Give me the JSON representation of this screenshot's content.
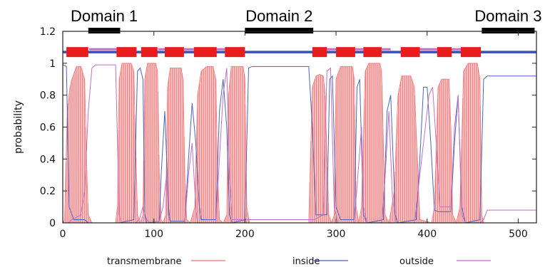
{
  "chart_data": {
    "type": "line",
    "xlabel": "",
    "ylabel": "probability",
    "xlim": [
      0,
      520
    ],
    "ylim": [
      0,
      1.2
    ],
    "x_ticks": [
      0,
      100,
      200,
      300,
      400,
      500
    ],
    "y_ticks": [
      0,
      0.2,
      0.4,
      0.6,
      0.8,
      1,
      1.2
    ],
    "y_tick_labels": [
      "0",
      "0.2",
      "0.4",
      "0.6",
      "0.8",
      "1",
      "1.2"
    ],
    "grid": false,
    "legend_position": "bottom",
    "series": [
      {
        "name": "transmembrane",
        "color": "#f07070",
        "style": "dense-vertical-fill",
        "points": [
          [
            0,
            0
          ],
          [
            2,
            0.02
          ],
          [
            5,
            0.7
          ],
          [
            8,
            0.85
          ],
          [
            10,
            0.9
          ],
          [
            15,
            0.98
          ],
          [
            20,
            0.98
          ],
          [
            24,
            0.9
          ],
          [
            26,
            0.4
          ],
          [
            28,
            0.05
          ],
          [
            32,
            0
          ],
          [
            58,
            0
          ],
          [
            60,
            0.1
          ],
          [
            62,
            0.9
          ],
          [
            65,
            1
          ],
          [
            75,
            1
          ],
          [
            78,
            0.95
          ],
          [
            80,
            0.5
          ],
          [
            82,
            0.05
          ],
          [
            85,
            0
          ],
          [
            88,
            0.05
          ],
          [
            90,
            0.9
          ],
          [
            93,
            1
          ],
          [
            102,
            1
          ],
          [
            104,
            0.95
          ],
          [
            106,
            0.3
          ],
          [
            108,
            0.02
          ],
          [
            110,
            0
          ],
          [
            113,
            0.05
          ],
          [
            115,
            0.85
          ],
          [
            118,
            0.97
          ],
          [
            130,
            0.97
          ],
          [
            132,
            0.9
          ],
          [
            134,
            0.3
          ],
          [
            136,
            0.02
          ],
          [
            140,
            0
          ],
          [
            145,
            0.1
          ],
          [
            148,
            0.8
          ],
          [
            152,
            0.95
          ],
          [
            158,
            0.98
          ],
          [
            165,
            0.98
          ],
          [
            168,
            0.9
          ],
          [
            170,
            0.3
          ],
          [
            172,
            0.02
          ],
          [
            176,
            0
          ],
          [
            180,
            0.05
          ],
          [
            182,
            0.8
          ],
          [
            185,
            0.98
          ],
          [
            198,
            0.98
          ],
          [
            200,
            0.9
          ],
          [
            202,
            0.1
          ],
          [
            205,
            0
          ],
          [
            270,
            0
          ],
          [
            274,
            0.85
          ],
          [
            278,
            0.92
          ],
          [
            282,
            0.93
          ],
          [
            286,
            0.92
          ],
          [
            288,
            0.8
          ],
          [
            292,
            0.05
          ],
          [
            295,
            0
          ],
          [
            298,
            0.05
          ],
          [
            300,
            0.9
          ],
          [
            305,
            0.98
          ],
          [
            318,
            0.98
          ],
          [
            320,
            0.9
          ],
          [
            322,
            0.1
          ],
          [
            325,
            0
          ],
          [
            328,
            0.1
          ],
          [
            332,
            0.95
          ],
          [
            336,
            1
          ],
          [
            348,
            1
          ],
          [
            350,
            0.95
          ],
          [
            352,
            0.5
          ],
          [
            354,
            0.05
          ],
          [
            358,
            0
          ],
          [
            364,
            0.2
          ],
          [
            368,
            0.8
          ],
          [
            372,
            0.92
          ],
          [
            382,
            0.92
          ],
          [
            386,
            0.85
          ],
          [
            390,
            0.3
          ],
          [
            392,
            0.02
          ],
          [
            405,
            0
          ],
          [
            408,
            0.1
          ],
          [
            412,
            0.85
          ],
          [
            416,
            0.9
          ],
          [
            424,
            0.9
          ],
          [
            426,
            0.6
          ],
          [
            428,
            0.05
          ],
          [
            432,
            0
          ],
          [
            436,
            0.1
          ],
          [
            440,
            0.95
          ],
          [
            445,
            1
          ],
          [
            455,
            1
          ],
          [
            458,
            0.9
          ],
          [
            460,
            0.05
          ],
          [
            462,
            0
          ],
          [
            520,
            0
          ]
        ]
      },
      {
        "name": "inside",
        "color": "#4a64c0",
        "points": [
          [
            0,
            0.99
          ],
          [
            4,
            0.98
          ],
          [
            7,
            0.1
          ],
          [
            12,
            0.02
          ],
          [
            24,
            0.02
          ],
          [
            28,
            0
          ],
          [
            58,
            0
          ],
          [
            62,
            0
          ],
          [
            78,
            0.02
          ],
          [
            82,
            0.95
          ],
          [
            85,
            0.97
          ],
          [
            88,
            0.9
          ],
          [
            90,
            0.05
          ],
          [
            92,
            0
          ],
          [
            106,
            0.01
          ],
          [
            108,
            0.3
          ],
          [
            112,
            0.7
          ],
          [
            116,
            0.1
          ],
          [
            118,
            0.01
          ],
          [
            134,
            0.01
          ],
          [
            138,
            0.4
          ],
          [
            142,
            0.75
          ],
          [
            146,
            0.5
          ],
          [
            150,
            0.1
          ],
          [
            152,
            0.02
          ],
          [
            168,
            0.02
          ],
          [
            172,
            0.7
          ],
          [
            176,
            0.9
          ],
          [
            180,
            0.6
          ],
          [
            183,
            0.05
          ],
          [
            186,
            0
          ],
          [
            200,
            0.02
          ],
          [
            204,
            0.97
          ],
          [
            208,
            0.98
          ],
          [
            270,
            0.98
          ],
          [
            274,
            0.6
          ],
          [
            278,
            0.05
          ],
          [
            290,
            0.05
          ],
          [
            293,
            0.9
          ],
          [
            296,
            0.92
          ],
          [
            300,
            0.1
          ],
          [
            305,
            0.02
          ],
          [
            320,
            0.02
          ],
          [
            323,
            0.85
          ],
          [
            326,
            0.9
          ],
          [
            330,
            0.05
          ],
          [
            334,
            0
          ],
          [
            352,
            0.02
          ],
          [
            356,
            0.7
          ],
          [
            360,
            0.8
          ],
          [
            365,
            0.05
          ],
          [
            368,
            0
          ],
          [
            388,
            0.02
          ],
          [
            392,
            0.4
          ],
          [
            396,
            0.85
          ],
          [
            400,
            0.85
          ],
          [
            404,
            0.5
          ],
          [
            408,
            0.08
          ],
          [
            412,
            0.07
          ],
          [
            426,
            0.07
          ],
          [
            430,
            0.5
          ],
          [
            434,
            0.8
          ],
          [
            438,
            0.1
          ],
          [
            442,
            0
          ],
          [
            458,
            0.02
          ],
          [
            462,
            0.9
          ],
          [
            466,
            0.92
          ],
          [
            520,
            0.92
          ]
        ]
      },
      {
        "name": "outside",
        "color": "#c070c0",
        "points": [
          [
            0,
            0
          ],
          [
            6,
            0
          ],
          [
            10,
            0.02
          ],
          [
            20,
            0.05
          ],
          [
            24,
            0.2
          ],
          [
            28,
            0.7
          ],
          [
            32,
            0.97
          ],
          [
            36,
            0.99
          ],
          [
            58,
            0.99
          ],
          [
            62,
            0.05
          ],
          [
            64,
            0
          ],
          [
            80,
            0
          ],
          [
            84,
            0.02
          ],
          [
            88,
            0.1
          ],
          [
            92,
            0.02
          ],
          [
            96,
            0
          ],
          [
            106,
            0.01
          ],
          [
            110,
            0.1
          ],
          [
            114,
            0.3
          ],
          [
            116,
            0.05
          ],
          [
            118,
            0
          ],
          [
            134,
            0
          ],
          [
            138,
            0.3
          ],
          [
            142,
            0.5
          ],
          [
            146,
            0.1
          ],
          [
            148,
            0
          ],
          [
            168,
            0
          ],
          [
            172,
            0.4
          ],
          [
            176,
            0.8
          ],
          [
            180,
            0.97
          ],
          [
            183,
            0.3
          ],
          [
            186,
            0.02
          ],
          [
            200,
            0.02
          ],
          [
            260,
            0.02
          ],
          [
            272,
            0.02
          ],
          [
            276,
            0.02
          ],
          [
            286,
            0.05
          ],
          [
            290,
            0.95
          ],
          [
            294,
            0.97
          ],
          [
            298,
            0.1
          ],
          [
            302,
            0
          ],
          [
            320,
            0
          ],
          [
            324,
            0.3
          ],
          [
            328,
            0.6
          ],
          [
            330,
            0.1
          ],
          [
            334,
            0
          ],
          [
            350,
            0
          ],
          [
            354,
            0.3
          ],
          [
            358,
            0.7
          ],
          [
            362,
            0.15
          ],
          [
            366,
            0
          ],
          [
            386,
            0
          ],
          [
            390,
            0.2
          ],
          [
            394,
            0.4
          ],
          [
            398,
            0.6
          ],
          [
            402,
            0.8
          ],
          [
            406,
            0.85
          ],
          [
            410,
            0.5
          ],
          [
            414,
            0.1
          ],
          [
            426,
            0.1
          ],
          [
            430,
            0.6
          ],
          [
            434,
            0.8
          ],
          [
            438,
            0.05
          ],
          [
            442,
            0
          ],
          [
            458,
            0
          ],
          [
            462,
            0.02
          ],
          [
            466,
            0.08
          ],
          [
            520,
            0.08
          ]
        ]
      }
    ],
    "domains": [
      {
        "label": "Domain 1",
        "start": 28,
        "end": 63
      },
      {
        "label": "Domain 2",
        "start": 200,
        "end": 275
      },
      {
        "label": "Domain 3",
        "start": 460,
        "end": 518
      }
    ],
    "topology": {
      "y": 1.07,
      "line_color": "#3a50b0",
      "outside_color": "#c070c0",
      "tm_color": "#e81c1c",
      "outside_segments": [
        [
          29,
          59
        ],
        [
          105,
          112
        ],
        [
          133,
          144
        ],
        [
          169,
          178
        ],
        [
          290,
          300
        ],
        [
          321,
          330
        ],
        [
          350,
          360
        ],
        [
          392,
          411
        ],
        [
          427,
          437
        ]
      ],
      "tm_segments": [
        [
          4,
          28
        ],
        [
          59,
          81
        ],
        [
          86,
          104
        ],
        [
          112,
          133
        ],
        [
          144,
          169
        ],
        [
          178,
          200
        ],
        [
          274,
          290
        ],
        [
          300,
          321
        ],
        [
          330,
          350
        ],
        [
          371,
          392
        ],
        [
          411,
          427
        ],
        [
          437,
          459
        ]
      ]
    }
  }
}
